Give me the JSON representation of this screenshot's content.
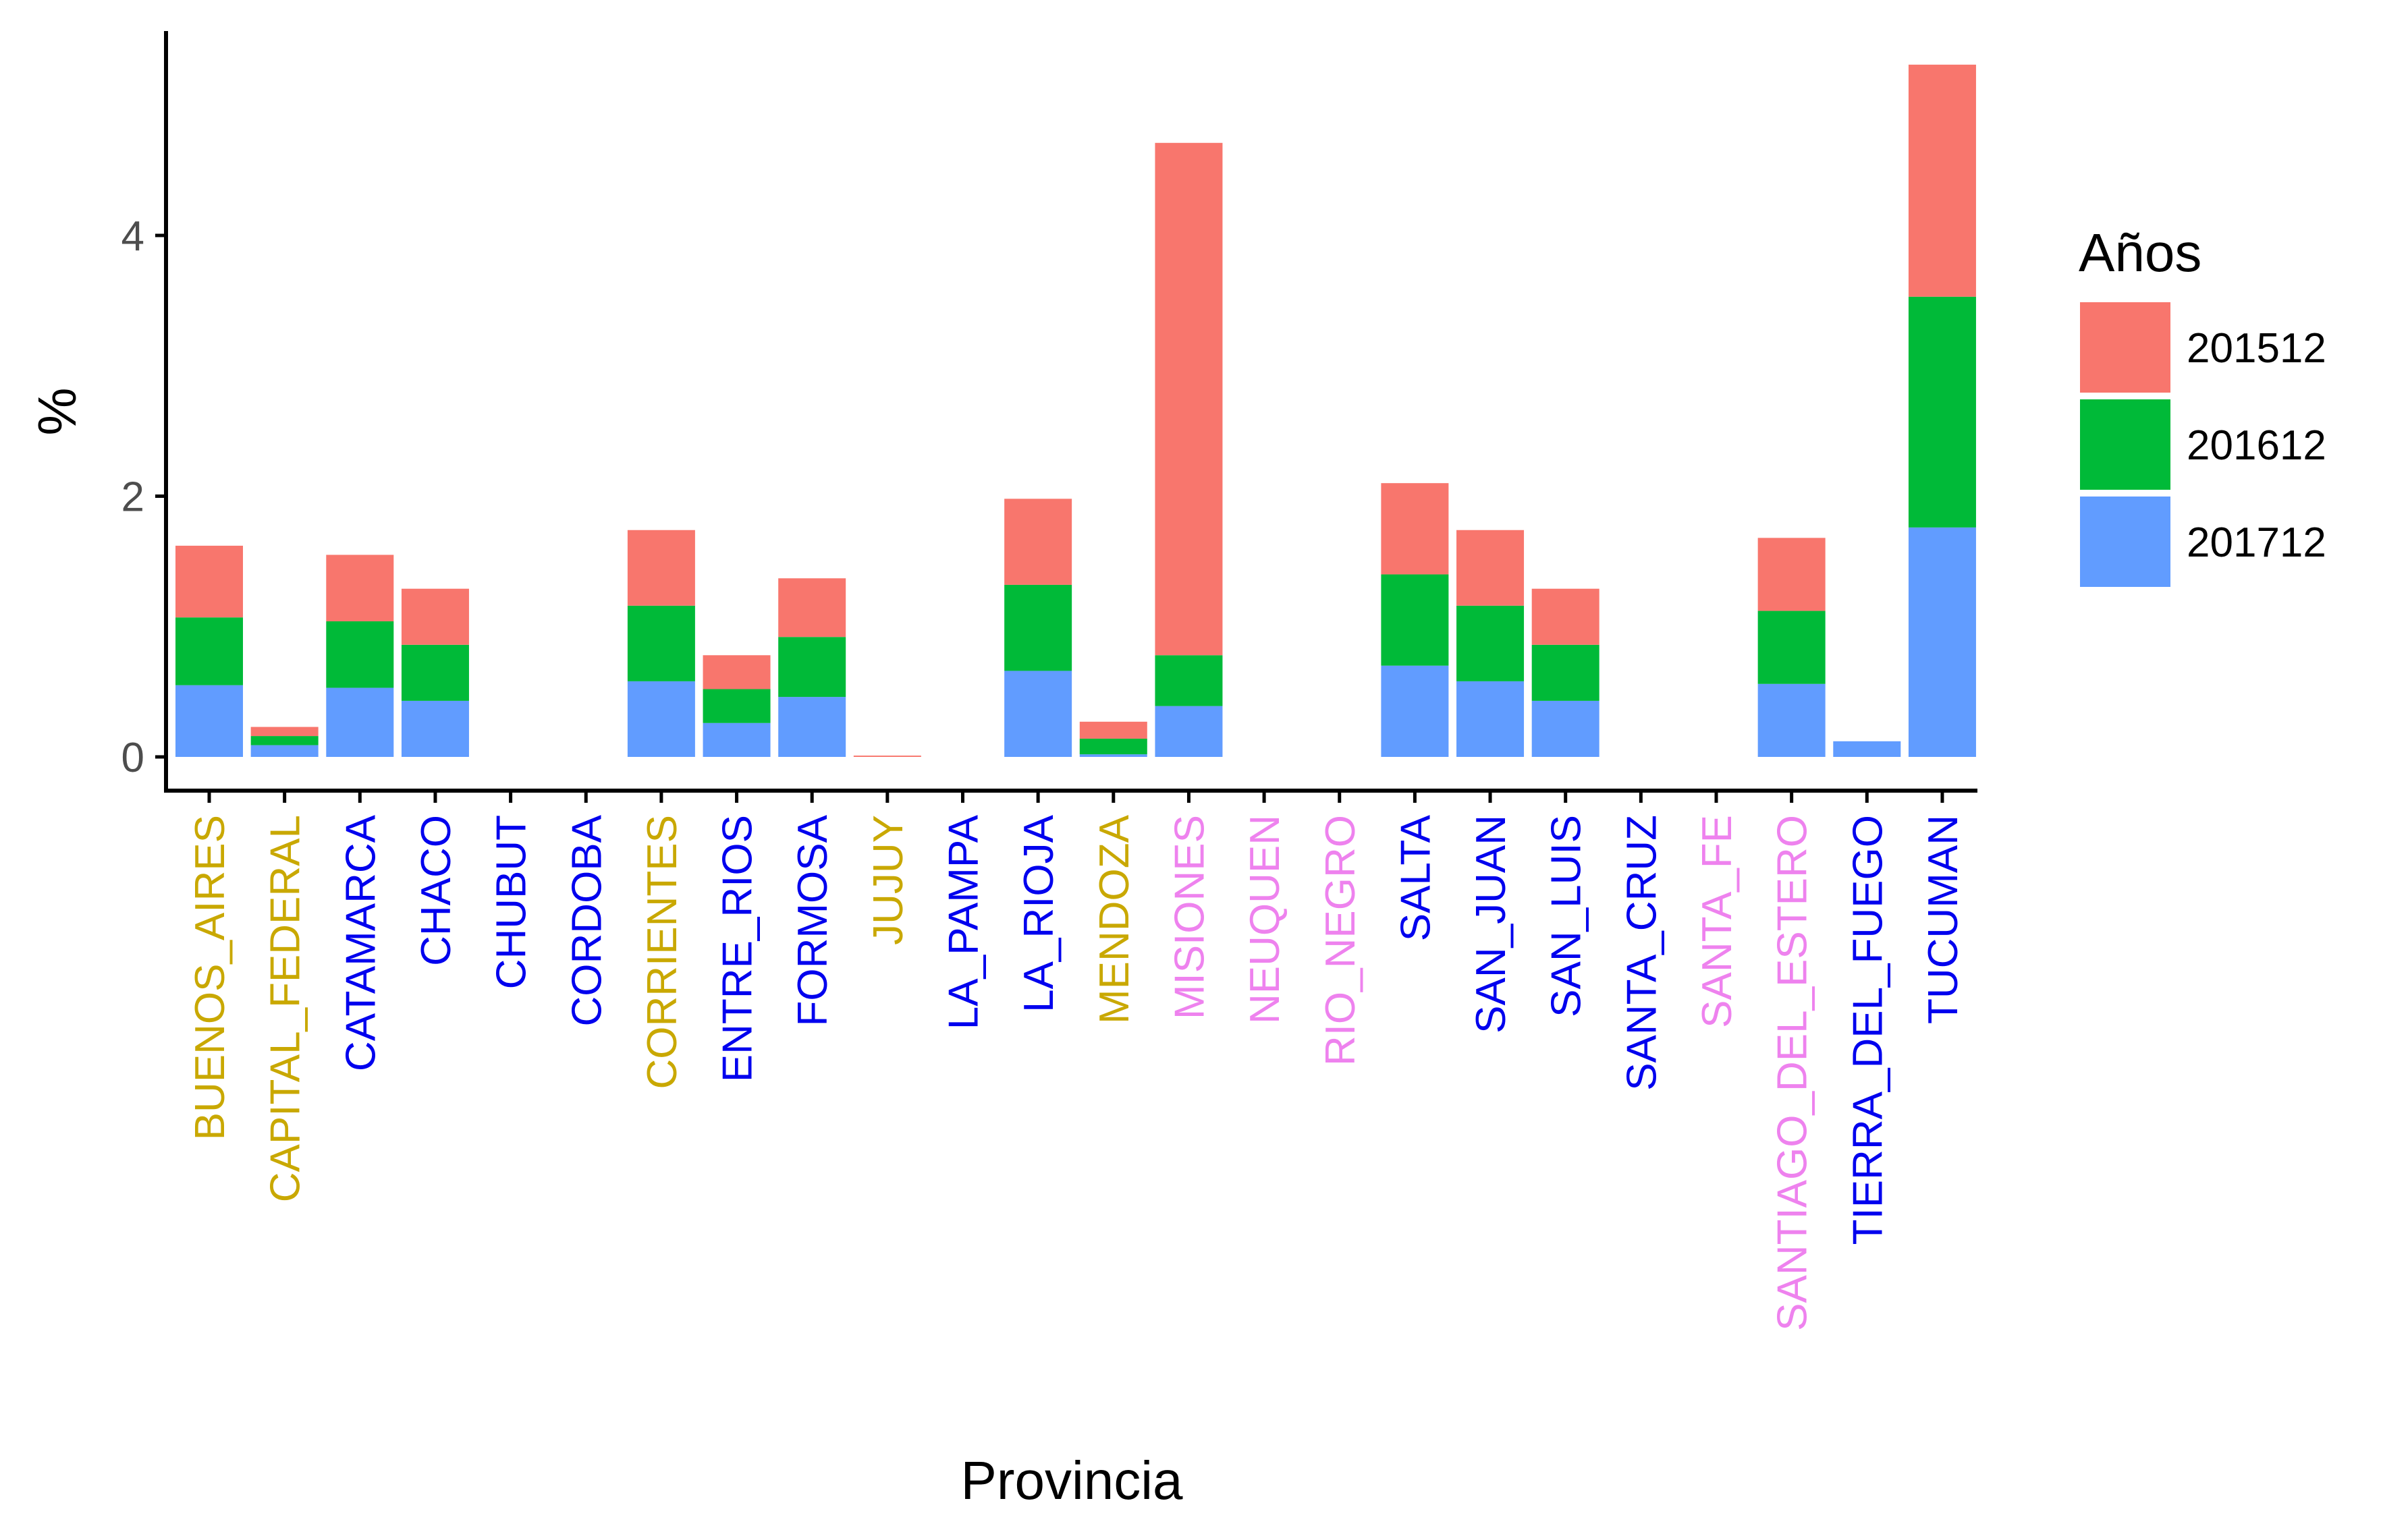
{
  "chart_data": {
    "type": "bar",
    "stacked": true,
    "title": "",
    "xlabel": "Provincia",
    "ylabel": "%",
    "ylim": [
      -0.25,
      5.55
    ],
    "yticks": [
      0,
      2,
      4
    ],
    "grid": false,
    "legend": {
      "title": "Años",
      "placement": "right"
    },
    "categories": [
      "BUENOS_AIRES",
      "CAPITAL_FEDERAL",
      "CATAMARCA",
      "CHACO",
      "CHUBUT",
      "CORDOBA",
      "CORRIENTES",
      "ENTRE_RIOS",
      "FORMOSA",
      "JUJUY",
      "LA_PAMPA",
      "LA_RIOJA",
      "MENDOZA",
      "MISIONES",
      "NEUQUEN",
      "RIO_NEGRO",
      "SALTA",
      "SAN_JUAN",
      "SAN_LUIS",
      "SANTA_CRUZ",
      "SANTA_FE",
      "SANTIAGO_DEL_ESTERO",
      "TIERRA_DEL_FUEGO",
      "TUCUMAN"
    ],
    "category_colors": [
      "#c9a800",
      "#c9a800",
      "#0000ee",
      "#0000ee",
      "#0000ee",
      "#0000ee",
      "#c9a800",
      "#0000ee",
      "#0000ee",
      "#c9a800",
      "#0000ee",
      "#0000ee",
      "#c9a800",
      "#ee82ee",
      "#ee82ee",
      "#ee82ee",
      "#0000ee",
      "#0000ee",
      "#0000ee",
      "#0000ee",
      "#ee82ee",
      "#ee82ee",
      "#0000ee",
      "#0000ee"
    ],
    "series": [
      {
        "name": "201712",
        "color": "#619cff",
        "values": [
          0.55,
          0.09,
          0.53,
          0.43,
          0,
          0,
          0.58,
          0.26,
          0.46,
          0,
          0,
          0.66,
          0.02,
          0.39,
          0,
          0,
          0.7,
          0.58,
          0.43,
          0,
          0,
          0.56,
          0.12,
          1.76
        ]
      },
      {
        "name": "201612",
        "color": "#00ba38",
        "values": [
          0.52,
          0.07,
          0.51,
          0.43,
          0,
          0,
          0.58,
          0.26,
          0.46,
          0,
          0,
          0.66,
          0.12,
          0.39,
          0,
          0,
          0.7,
          0.58,
          0.43,
          0,
          0,
          0.56,
          0,
          1.77
        ]
      },
      {
        "name": "201512",
        "color": "#f8766d",
        "values": [
          0.55,
          0.07,
          0.51,
          0.43,
          0,
          0,
          0.58,
          0.26,
          0.45,
          0.01,
          0,
          0.66,
          0.13,
          3.93,
          0,
          0,
          0.7,
          0.58,
          0.43,
          0,
          0,
          0.56,
          0,
          1.78
        ]
      }
    ]
  }
}
